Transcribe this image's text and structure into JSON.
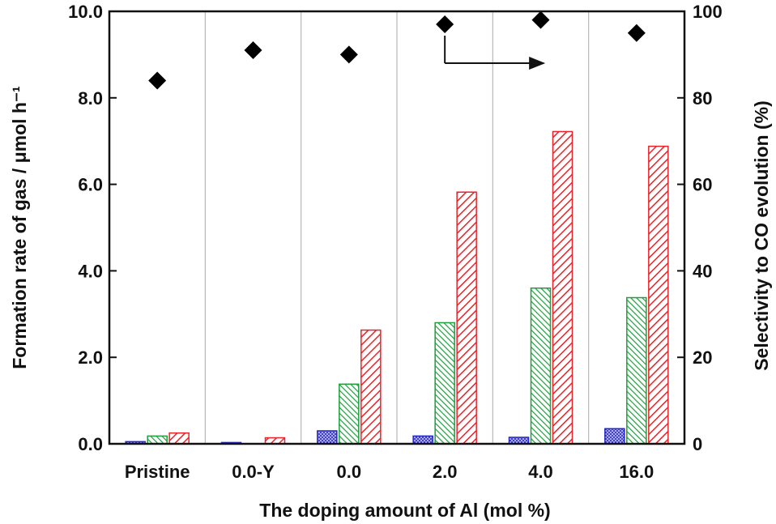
{
  "chart_data": {
    "type": "bar",
    "title": "",
    "xlabel": "The doping amount of Al (mol %)",
    "ylabel": "Formation rate of gas / μmol h⁻¹",
    "y2label": "Selectivity to CO evolution (%)",
    "categories": [
      "Pristine",
      "0.0-Y",
      "0.0",
      "2.0",
      "4.0",
      "16.0"
    ],
    "ylim": [
      0,
      10
    ],
    "yticks": [
      "0.0",
      "2.0",
      "4.0",
      "6.0",
      "8.0",
      "10.0"
    ],
    "y2lim": [
      0,
      100
    ],
    "y2ticks": [
      "0",
      "20",
      "40",
      "60",
      "80",
      "100"
    ],
    "series": [
      {
        "name": "blue series",
        "axis": "left",
        "color": "#2424c8",
        "pattern": "crosshatch",
        "values": [
          0.05,
          0.03,
          0.3,
          0.18,
          0.15,
          0.35
        ]
      },
      {
        "name": "green series",
        "axis": "left",
        "color": "#1e9e3c",
        "pattern": "backslash",
        "values": [
          0.18,
          0.0,
          1.38,
          2.8,
          3.6,
          3.38
        ]
      },
      {
        "name": "red series",
        "axis": "left",
        "color": "#e8242a",
        "pattern": "slash",
        "values": [
          0.25,
          0.14,
          2.63,
          5.82,
          7.22,
          6.88
        ]
      },
      {
        "name": "CO selectivity",
        "axis": "right",
        "type": "scatter",
        "marker": "diamond",
        "values": [
          84,
          91,
          90,
          97,
          98,
          95
        ]
      }
    ],
    "annotations": [
      {
        "type": "arrow",
        "description": "points from 2.0 selectivity marker to right axis"
      }
    ]
  }
}
